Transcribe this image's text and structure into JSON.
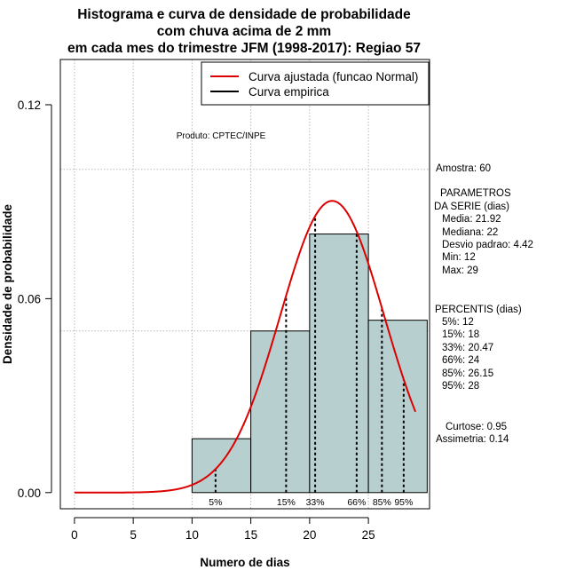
{
  "chart_data": {
    "type": "histogram",
    "title_lines": [
      "Histograma e curva de densidade de probabilidade",
      "com chuva acima de 2 mm",
      "em cada mes do trimestre JFM (1998-2017): Regiao 57"
    ],
    "xlabel": "Numero de dias",
    "ylabel": "Densidade de probabilidade",
    "xlim": [
      -1.2,
      30.2
    ],
    "ylim": [
      -0.005,
      0.134
    ],
    "x_ticks": [
      0,
      5,
      10,
      15,
      20,
      25
    ],
    "y_ticks": [
      0.0,
      0.06,
      0.12
    ],
    "y_tick_labels": [
      "0.00",
      "0.06",
      "0.12"
    ],
    "grid_x": [
      0,
      5,
      10,
      15,
      20,
      25
    ],
    "grid_y": [
      0.05,
      0.1
    ],
    "bins": [
      {
        "start": 10,
        "end": 15,
        "density": 0.01667
      },
      {
        "start": 15,
        "end": 20,
        "density": 0.05
      },
      {
        "start": 20,
        "end": 25,
        "density": 0.08
      },
      {
        "start": 25,
        "end": 30,
        "density": 0.05333
      }
    ],
    "bar_color": "#b7cfcf",
    "normal_fit": {
      "mean": 21.92,
      "sd": 4.42,
      "x_from": 0,
      "x_to": 29,
      "color": "#dd0000"
    },
    "percentile_lines": [
      {
        "label": "5%",
        "x": 12
      },
      {
        "label": "15%",
        "x": 18
      },
      {
        "label": "33%",
        "x": 20.47
      },
      {
        "label": "66%",
        "x": 24
      },
      {
        "label": "85%",
        "x": 26.15
      },
      {
        "label": "95%",
        "x": 28
      }
    ],
    "legend": {
      "position": "top-right",
      "entries": [
        {
          "label": "Curva ajustada (funcao Normal)",
          "color": "#dd0000"
        },
        {
          "label": "Curva empirica",
          "color": "#000000"
        }
      ]
    },
    "credit": "Produto: CPTEC/INPE"
  },
  "side_panel": {
    "sample": "Amostra: 60",
    "params_title_1": "PARAMETROS",
    "params_title_2": "DA SERIE (dias)",
    "media": "Media: 21.92",
    "mediana": "Mediana: 22",
    "desvio": "Desvio padrao: 4.42",
    "min": "Min: 12",
    "max": "Max: 29",
    "percentis_title": "PERCENTIS (dias)",
    "p5": "5%: 12",
    "p15": "15%: 18",
    "p33": "33%: 20.47",
    "p66": "66%: 24",
    "p85": "85%: 26.15",
    "p95": "95%: 28",
    "curtose": "Curtose: 0.95",
    "assimetria": "Assimetria: 0.14"
  }
}
